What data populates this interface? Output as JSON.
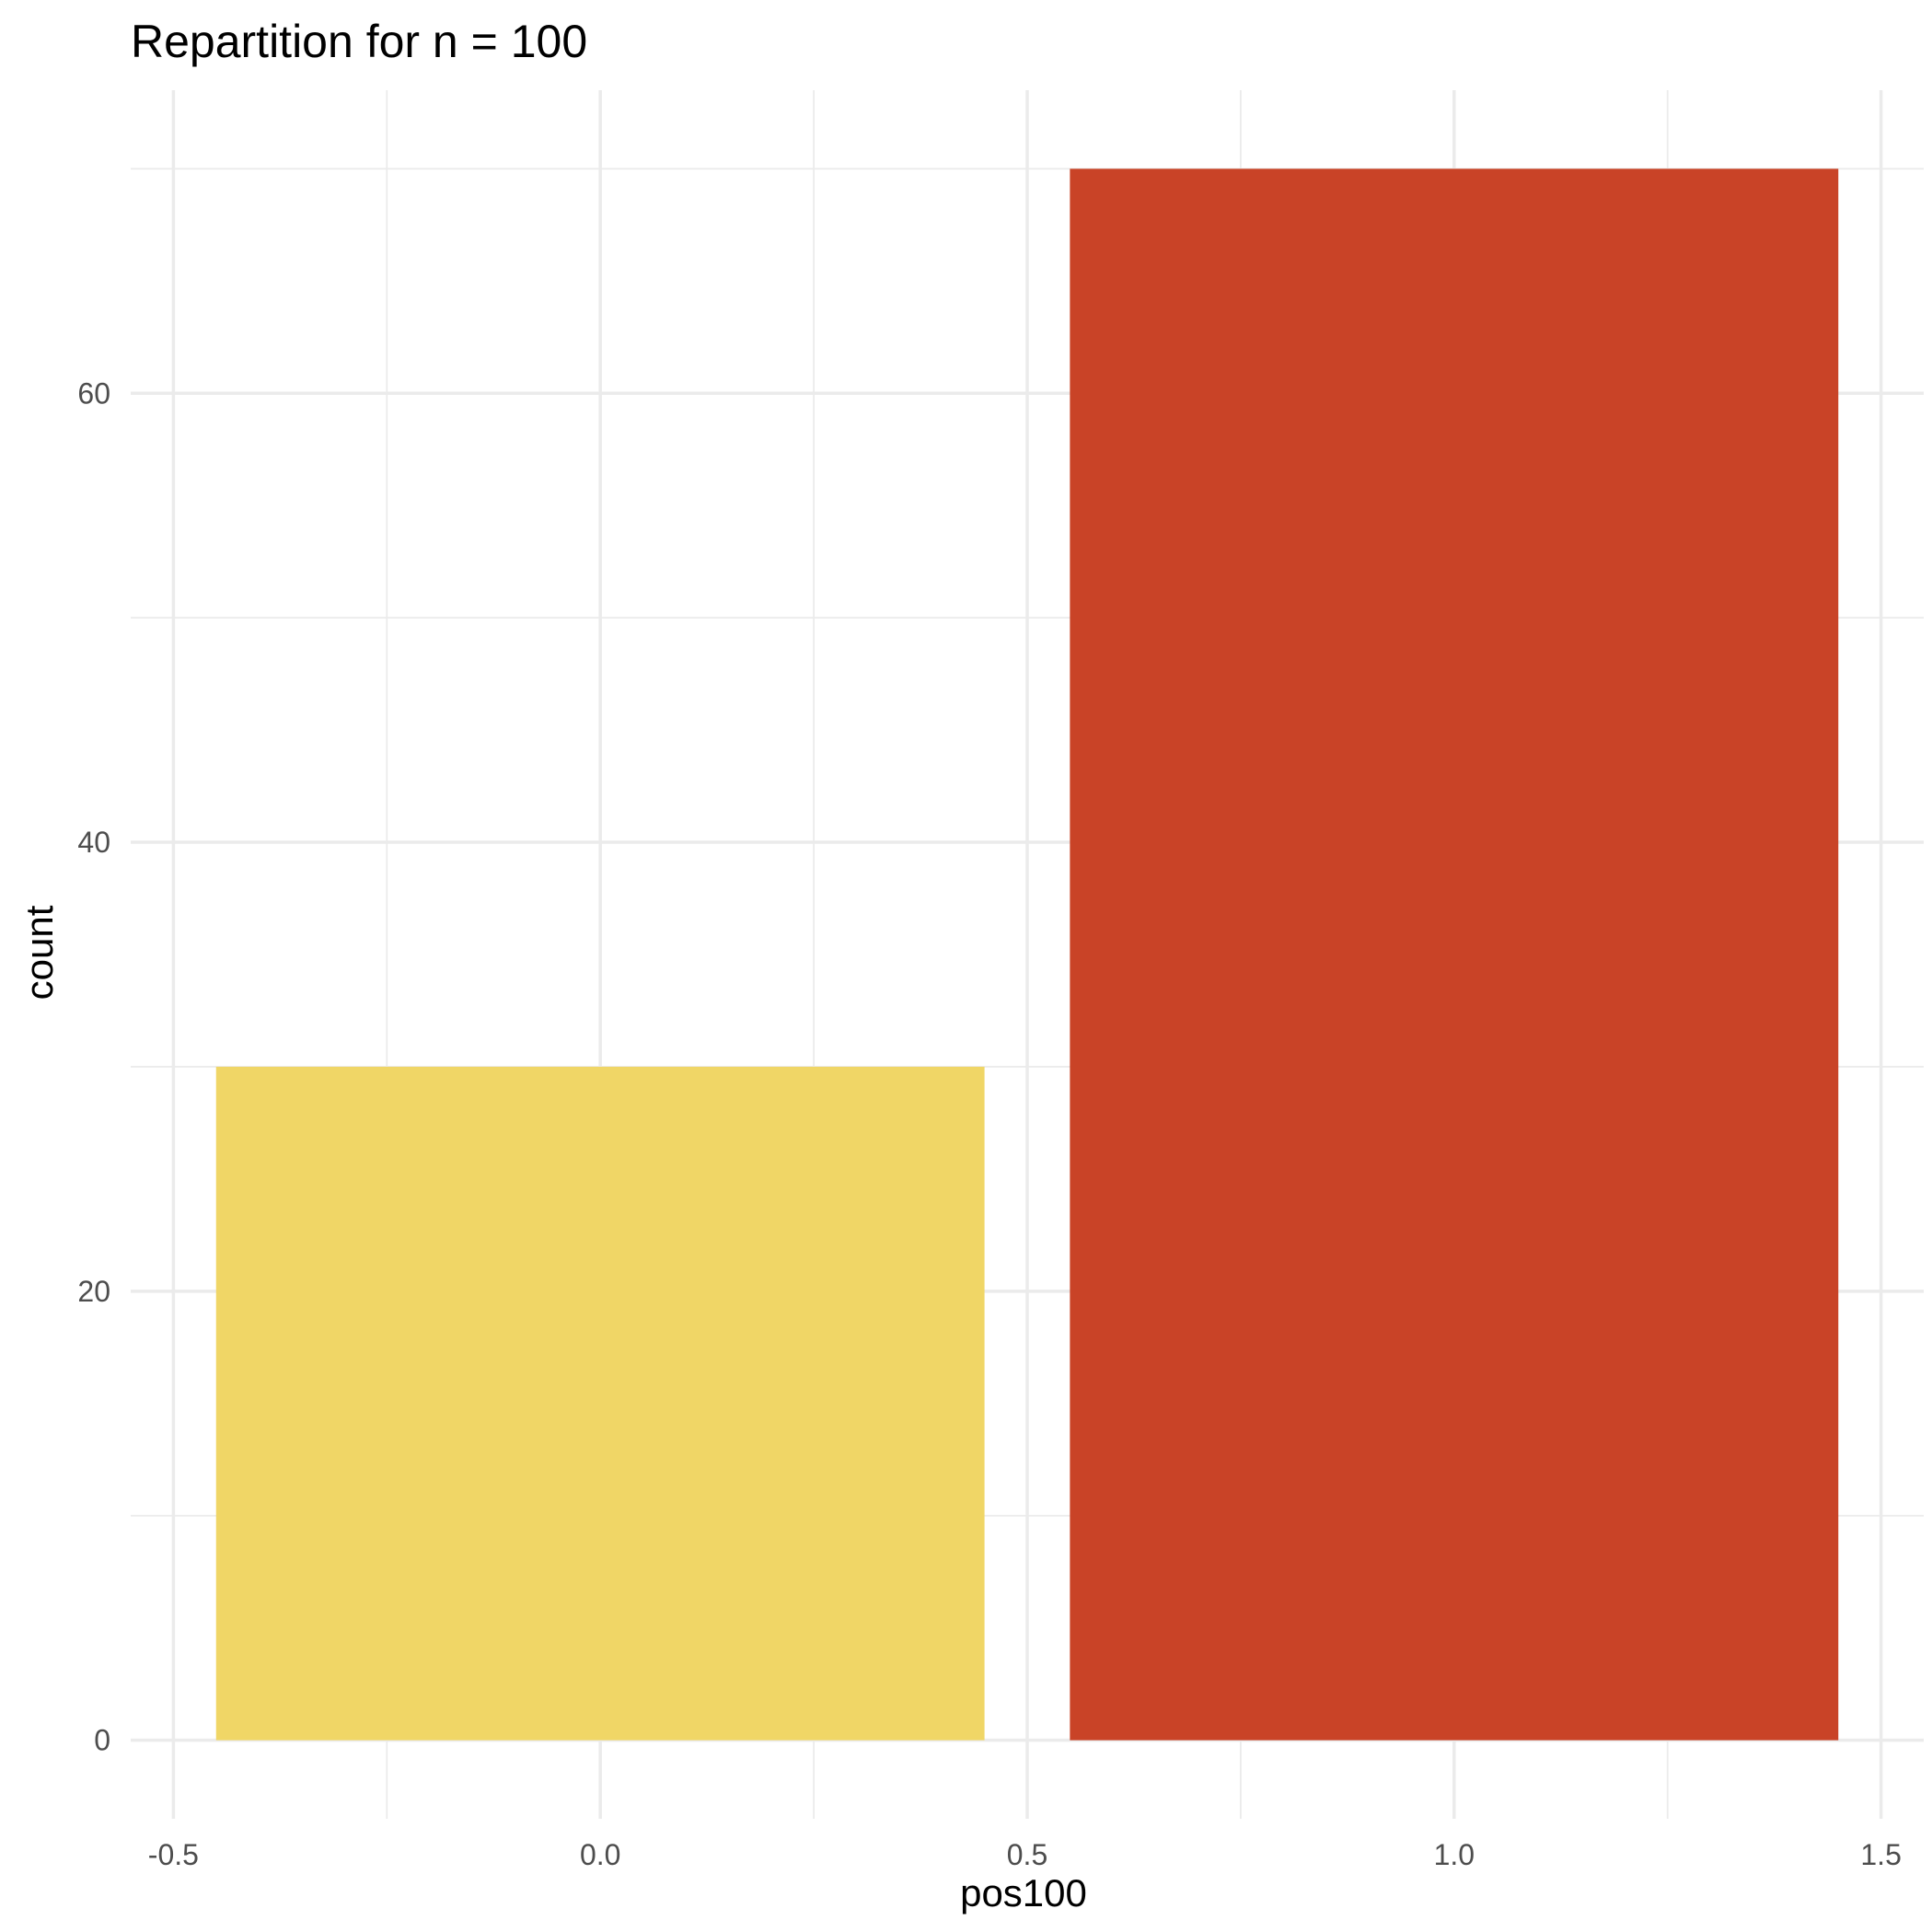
{
  "chart_data": {
    "type": "bar",
    "title": "Repartition for n = 100",
    "xlabel": "pos100",
    "ylabel": "count",
    "x": [
      0,
      1
    ],
    "values": [
      30,
      70
    ],
    "bar_width": 0.9,
    "colors": [
      "#F0D666",
      "#C94327"
    ],
    "xlim": [
      -0.55,
      1.55
    ],
    "ylim": [
      -3.5,
      73.5
    ],
    "x_ticks": [
      -0.5,
      0.0,
      0.5,
      1.0,
      1.5
    ],
    "x_tick_labels": [
      "-0.5",
      "0.0",
      "0.5",
      "1.0",
      "1.5"
    ],
    "x_minor_ticks": [
      -0.25,
      0.25,
      0.75,
      1.25
    ],
    "y_ticks": [
      0,
      20,
      40,
      60
    ],
    "y_tick_labels": [
      "0",
      "20",
      "40",
      "60"
    ],
    "y_minor_ticks": [
      10,
      30,
      50,
      70
    ],
    "grid": true,
    "legend": "none"
  }
}
